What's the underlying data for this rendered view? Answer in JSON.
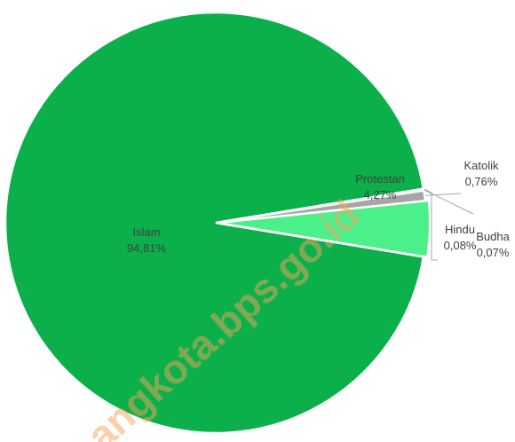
{
  "chart_data": {
    "type": "pie",
    "title": "",
    "slices": [
      {
        "label": "Islam",
        "value": 94.81,
        "value_label": "94,81%",
        "color": "#0cb04a"
      },
      {
        "label": "Protestan",
        "value": 4.27,
        "value_label": "4,27%",
        "color": "#4cf08b"
      },
      {
        "label": "Katolik",
        "value": 0.76,
        "value_label": "0,76%",
        "color": "#a6a6a6"
      },
      {
        "label": "Budha",
        "value": 0.07,
        "value_label": "0,07%",
        "color": "#bfbfbf"
      },
      {
        "label": "Hindu",
        "value": 0.08,
        "value_label": "0,08%",
        "color": "#0cb04a"
      }
    ],
    "legend": "none",
    "label_color": "#404040",
    "leader_line_color": "#a6a6a6",
    "slice_border_color": "#ffffff"
  },
  "watermark": {
    "text": "angkota.bps.go.id",
    "color": "#f5a45c"
  }
}
